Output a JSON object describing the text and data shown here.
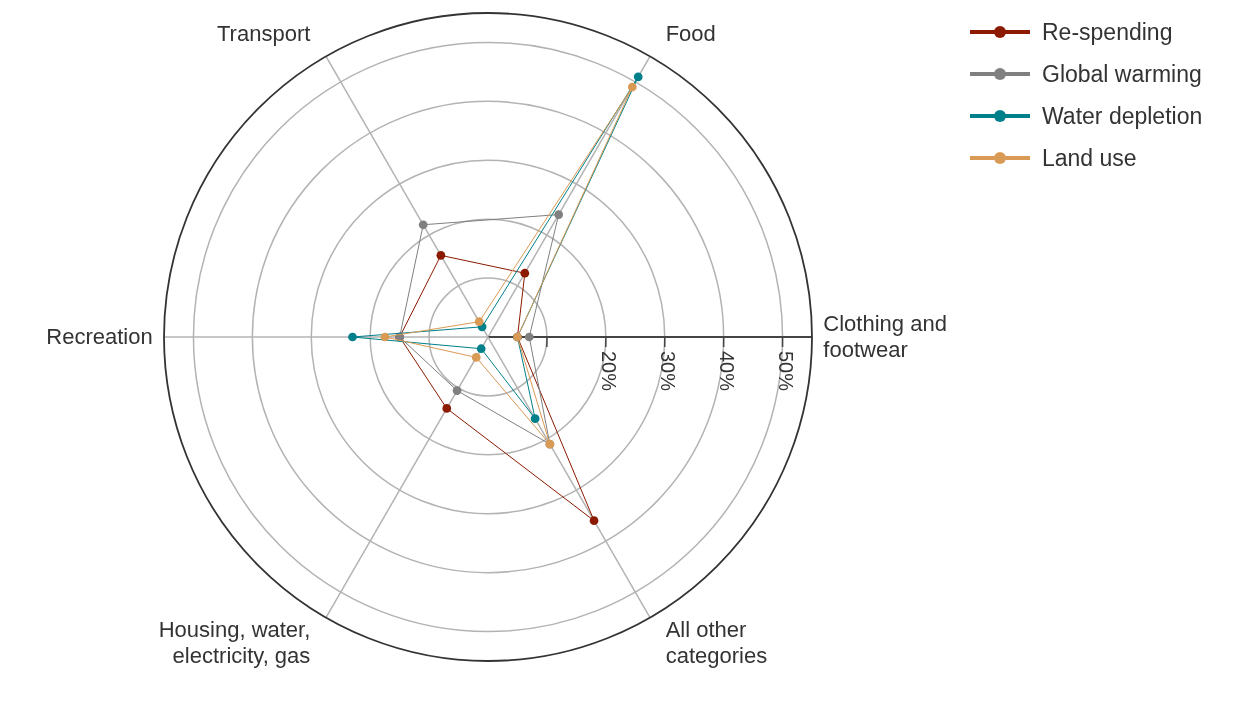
{
  "chart_data": {
    "type": "radar",
    "categories": [
      "Food",
      "Clothing and\nfootwear",
      "All other\ncategories",
      "Housing, water,\nelectricity, gas",
      "Recreation",
      "Transport"
    ],
    "ylim": [
      0,
      55
    ],
    "yticks": [
      {
        "value": 20,
        "label": "20%"
      },
      {
        "value": 30,
        "label": "30%"
      },
      {
        "value": 40,
        "label": "40%"
      },
      {
        "value": 50,
        "label": "50%"
      }
    ],
    "grid": true,
    "legend": "top right",
    "marker": "circle",
    "series": [
      {
        "name": "Re-spending",
        "color": "#8b1a00",
        "values": [
          12.5,
          5,
          36,
          14,
          15,
          16
        ]
      },
      {
        "name": "Global warming",
        "color": "#808080",
        "values": [
          24,
          7,
          21,
          10.5,
          15,
          22
        ]
      },
      {
        "name": "Water depletion",
        "color": "#00808a",
        "values": [
          51,
          5,
          16,
          2.3,
          23,
          2
        ]
      },
      {
        "name": "Land use",
        "color": "#d99a55",
        "values": [
          49,
          5,
          21,
          4,
          17.5,
          3
        ]
      }
    ]
  }
}
